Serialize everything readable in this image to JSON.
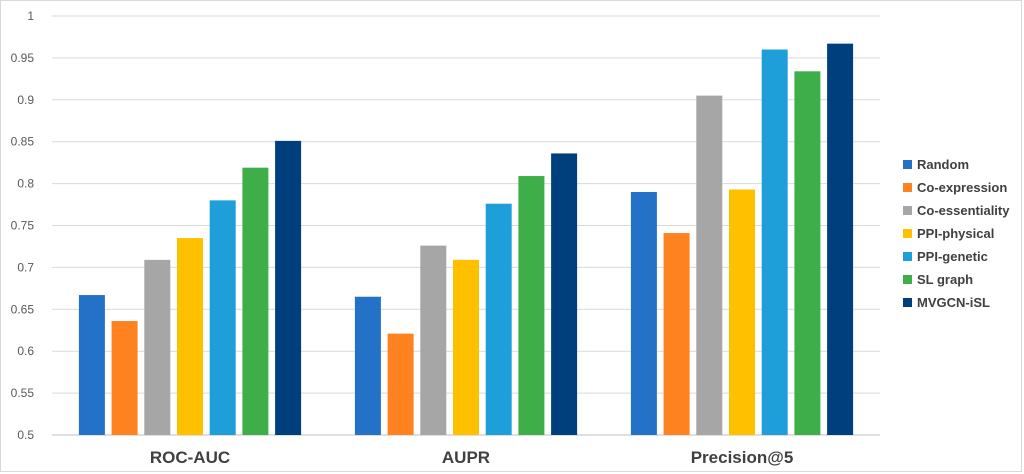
{
  "chart_data": {
    "type": "bar",
    "title": "",
    "xlabel": "",
    "ylabel": "",
    "categories": [
      "ROC-AUC",
      "AUPR",
      "Precision@5"
    ],
    "ylim": [
      0.5,
      1
    ],
    "yticks": [
      "0.5",
      "0.55",
      "0.6",
      "0.65",
      "0.7",
      "0.75",
      "0.8",
      "0.85",
      "0.9",
      "0.95",
      "1"
    ],
    "grid": true,
    "legend_position": "right",
    "series": [
      {
        "name": "Random",
        "color": "#2372C8",
        "values": [
          0.667,
          0.665,
          0.79
        ]
      },
      {
        "name": "Co-expression",
        "color": "#FF8221",
        "values": [
          0.636,
          0.621,
          0.741
        ]
      },
      {
        "name": "Co-essentiality",
        "color": "#A6A6A6",
        "values": [
          0.709,
          0.726,
          0.905
        ]
      },
      {
        "name": "PPI-physical",
        "color": "#FFC000",
        "values": [
          0.735,
          0.709,
          0.793
        ]
      },
      {
        "name": "PPI-genetic",
        "color": "#1F9FD9",
        "values": [
          0.78,
          0.776,
          0.96
        ]
      },
      {
        "name": "SL graph",
        "color": "#3EAE49",
        "values": [
          0.819,
          0.809,
          0.934
        ]
      },
      {
        "name": "MVGCN-iSL",
        "color": "#003F7D",
        "values": [
          0.851,
          0.836,
          0.967
        ]
      }
    ]
  }
}
